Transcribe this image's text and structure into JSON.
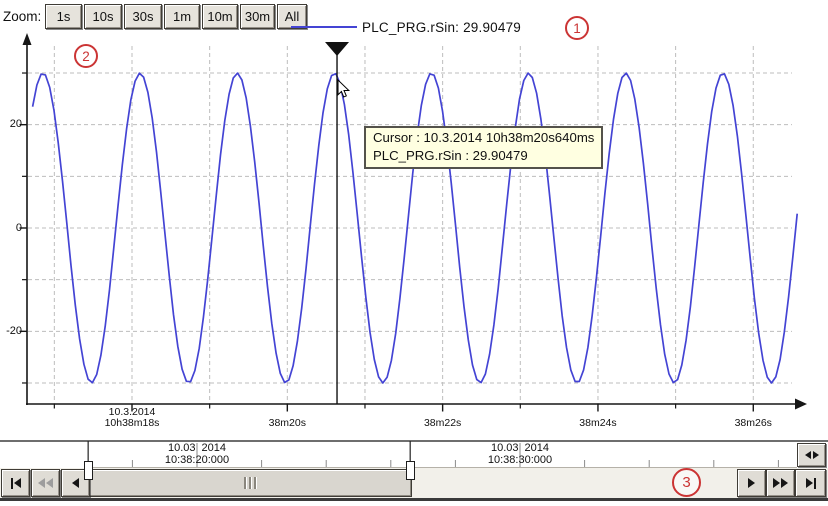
{
  "toolbar": {
    "label": "Zoom:",
    "buttons": [
      "1s",
      "10s",
      "30s",
      "1m",
      "10m",
      "30m",
      "All"
    ]
  },
  "legend": {
    "text": "PLC_PRG.rSin: 29.90479",
    "series_color": "#4444d4"
  },
  "annotations": {
    "c1": "1",
    "c2": "2",
    "c3": "3"
  },
  "tooltip": {
    "line1": "Cursor : 10.3.2014 10h38m20s640ms",
    "line2": "PLC_PRG.rSin : 29.90479"
  },
  "overview_bar": {
    "labels": [
      {
        "date": "10.03",
        "year": "2014",
        "time": "10:38:20:000"
      },
      {
        "date": "10.03",
        "year": "2014",
        "time": "10:38:30:000"
      }
    ]
  },
  "nav": {
    "buttons": [
      "go-first",
      "rewind",
      "step-back",
      "step-forward",
      "fast-forward",
      "go-last"
    ],
    "fit": "fit-horizontal"
  },
  "chart_data": {
    "type": "line",
    "series": [
      {
        "name": "PLC_PRG.rSin",
        "color": "#4444d4",
        "current_value": 29.90479,
        "signal": {
          "shape": "sine",
          "amplitude": 30,
          "offset": 0,
          "period_s": 1.2507,
          "zero_upcross_time_s": 16.541
        },
        "time_range_s": [
          16.72,
          26.58
        ],
        "sample_step_s": 0.055
      }
    ],
    "x_axis": {
      "unit": "time of day 10h38m",
      "major_ticks": [
        {
          "time_s": 18,
          "line1": "10.3.2014",
          "line2": "10h38m18s"
        },
        {
          "time_s": 20,
          "line1": "",
          "line2": "38m20s"
        },
        {
          "time_s": 22,
          "line1": "",
          "line2": "38m22s"
        },
        {
          "time_s": 24,
          "line1": "",
          "line2": "38m24s"
        },
        {
          "time_s": 26,
          "line1": "",
          "line2": "38m26s"
        }
      ],
      "minor_tick_times_s": [
        17,
        19,
        21,
        23,
        25
      ],
      "grid_times_s": [
        17,
        18,
        19,
        20,
        21,
        22,
        23,
        24,
        25,
        26
      ]
    },
    "y_axis": {
      "ticks": [
        {
          "value": 20,
          "label": "20"
        },
        {
          "value": 0,
          "label": "0"
        },
        {
          "value": -20,
          "label": "-20"
        }
      ],
      "minor_tick_values": [
        30,
        10,
        -10,
        -30
      ],
      "grid_values": [
        30,
        20,
        10,
        0,
        -10,
        -20,
        -30
      ],
      "range": [
        -33,
        32
      ]
    },
    "cursor": {
      "time_s": 20.64,
      "value": 29.90479
    },
    "overview": {
      "tick_times_s": [
        18,
        20,
        22,
        24,
        26,
        28,
        30,
        32,
        34,
        36,
        38
      ],
      "labeled_times_s": [
        20,
        30
      ],
      "window_s": [
        16.63,
        26.6
      ]
    }
  }
}
